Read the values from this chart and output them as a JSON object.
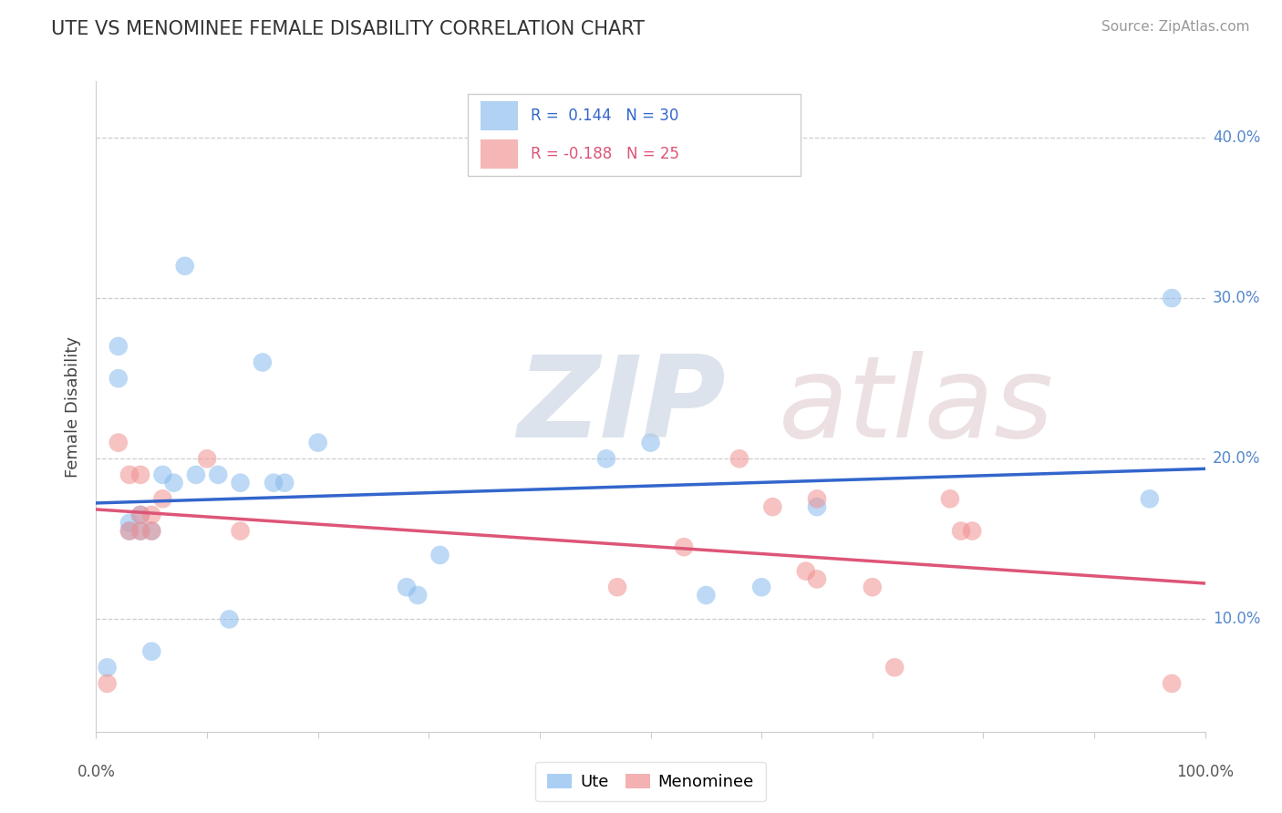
{
  "title": "UTE VS MENOMINEE FEMALE DISABILITY CORRELATION CHART",
  "source": "Source: ZipAtlas.com",
  "ylabel": "Female Disability",
  "ytick_labels": [
    "10.0%",
    "20.0%",
    "30.0%",
    "40.0%"
  ],
  "ytick_values": [
    0.1,
    0.2,
    0.3,
    0.4
  ],
  "xlim": [
    0.0,
    1.0
  ],
  "ylim": [
    0.03,
    0.435
  ],
  "ute_color": "#88bbee",
  "menominee_color": "#f09090",
  "ute_line_color": "#3366cc",
  "menominee_line_color": "#dd5577",
  "background_color": "#ffffff",
  "ute_x": [
    0.01,
    0.02,
    0.02,
    0.03,
    0.03,
    0.04,
    0.04,
    0.05,
    0.05,
    0.06,
    0.07,
    0.08,
    0.09,
    0.11,
    0.12,
    0.13,
    0.15,
    0.16,
    0.17,
    0.2,
    0.28,
    0.29,
    0.31,
    0.46,
    0.5,
    0.55,
    0.6,
    0.65,
    0.95,
    0.97
  ],
  "ute_y": [
    0.07,
    0.25,
    0.27,
    0.16,
    0.155,
    0.165,
    0.155,
    0.155,
    0.08,
    0.19,
    0.185,
    0.32,
    0.19,
    0.19,
    0.1,
    0.185,
    0.26,
    0.185,
    0.185,
    0.21,
    0.12,
    0.115,
    0.14,
    0.2,
    0.21,
    0.115,
    0.12,
    0.17,
    0.175,
    0.3
  ],
  "menominee_x": [
    0.01,
    0.02,
    0.03,
    0.03,
    0.04,
    0.04,
    0.04,
    0.05,
    0.05,
    0.06,
    0.1,
    0.13,
    0.47,
    0.53,
    0.58,
    0.61,
    0.64,
    0.65,
    0.65,
    0.7,
    0.72,
    0.77,
    0.78,
    0.79,
    0.97
  ],
  "menominee_y": [
    0.06,
    0.21,
    0.19,
    0.155,
    0.165,
    0.19,
    0.155,
    0.165,
    0.155,
    0.175,
    0.2,
    0.155,
    0.12,
    0.145,
    0.2,
    0.17,
    0.13,
    0.125,
    0.175,
    0.12,
    0.07,
    0.175,
    0.155,
    0.155,
    0.06
  ],
  "grid_color": "#cccccc",
  "spine_color": "#cccccc",
  "title_color": "#333333",
  "source_color": "#999999",
  "ytick_color": "#5588cc",
  "xtick_label_color": "#555555"
}
